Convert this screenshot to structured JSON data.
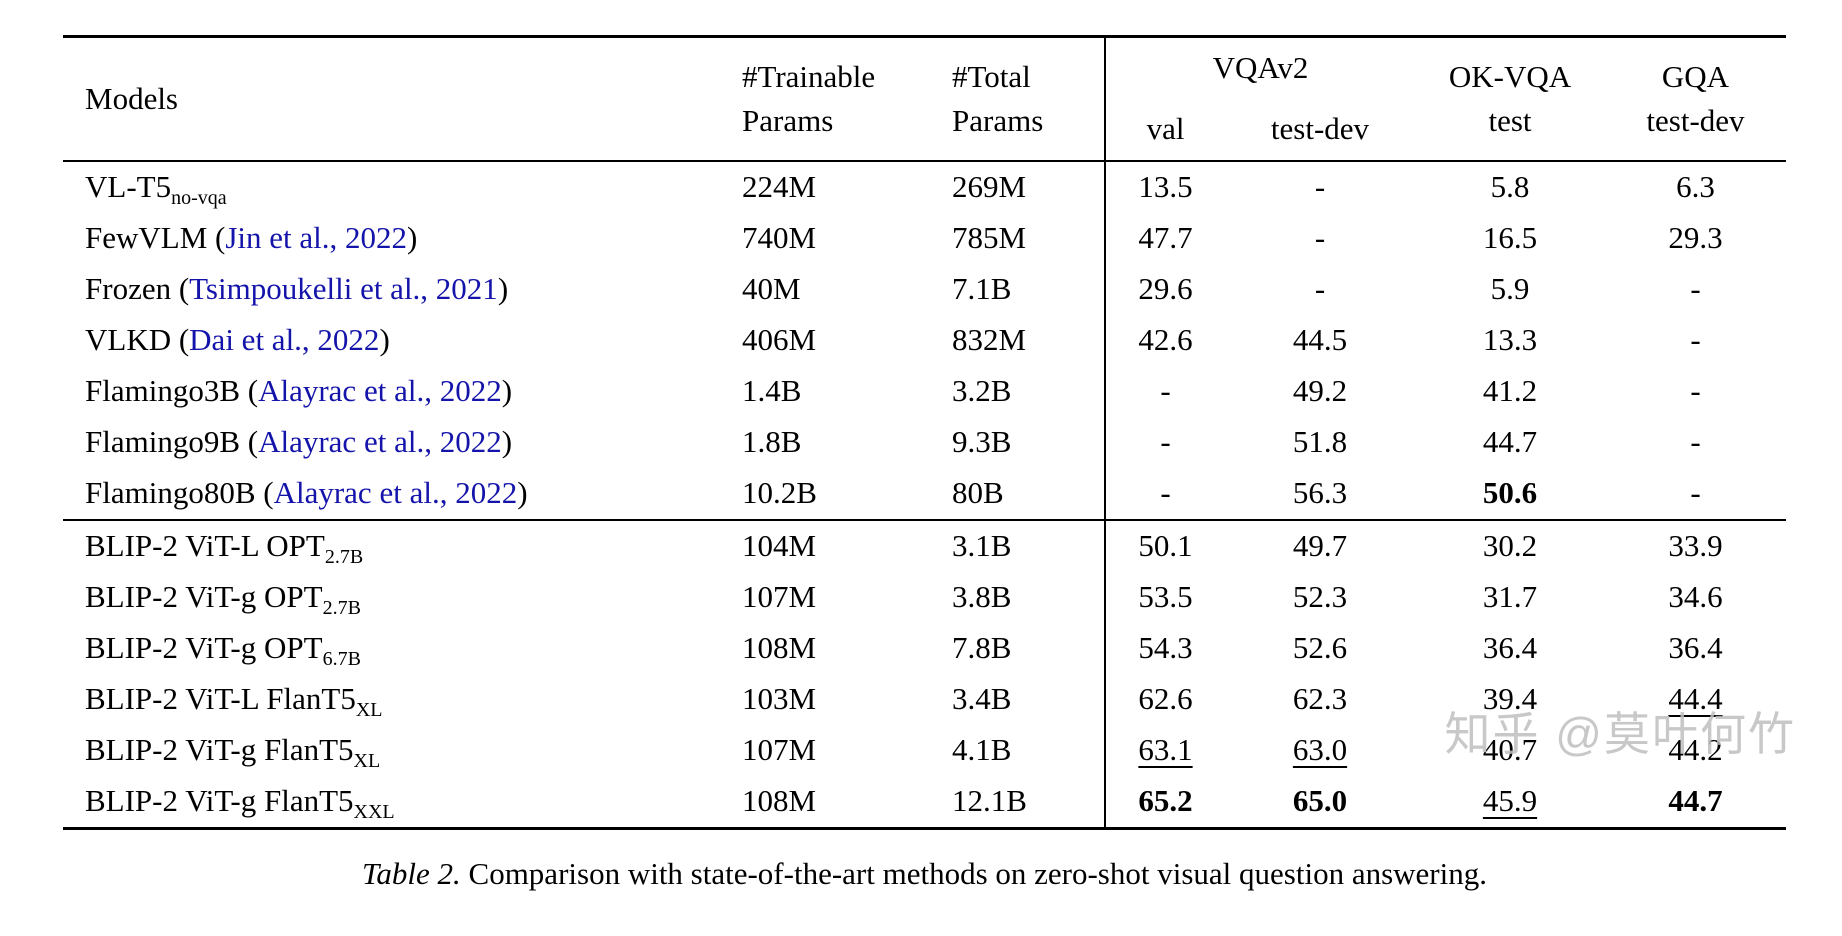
{
  "colors": {
    "text": "#000000",
    "citation": "#1414aa",
    "watermark": "#bfbfbf"
  },
  "table": {
    "headers": {
      "models": "Models",
      "trainable": [
        "#Trainable",
        "Params"
      ],
      "total": [
        "#Total",
        "Params"
      ],
      "vqav2": "VQAv2",
      "val": "val",
      "test_dev": "test-dev",
      "okvqa": [
        "OK-VQA",
        "test"
      ],
      "gqa": [
        "GQA",
        "test-dev"
      ]
    },
    "groups": [
      {
        "name": "baselines",
        "rows": [
          {
            "pre": "VL-T5",
            "sub": "no-vqa",
            "trainable": "224M",
            "total": "269M",
            "metrics": [
              {
                "v": "13.5"
              },
              {
                "v": "-"
              },
              {
                "v": "5.8"
              },
              {
                "v": "6.3"
              }
            ]
          },
          {
            "pre": "FewVLM (",
            "cite": "Jin et al., 2022",
            "post": ")",
            "trainable": "740M",
            "total": "785M",
            "metrics": [
              {
                "v": "47.7"
              },
              {
                "v": "-"
              },
              {
                "v": "16.5"
              },
              {
                "v": "29.3"
              }
            ]
          },
          {
            "pre": "Frozen (",
            "cite": "Tsimpoukelli et al., 2021",
            "post": ")",
            "trainable": "40M",
            "total": "7.1B",
            "metrics": [
              {
                "v": "29.6"
              },
              {
                "v": "-"
              },
              {
                "v": "5.9"
              },
              {
                "v": "-"
              }
            ]
          },
          {
            "pre": "VLKD (",
            "cite": "Dai et al., 2022",
            "post": ")",
            "trainable": "406M",
            "total": "832M",
            "metrics": [
              {
                "v": "42.6"
              },
              {
                "v": "44.5"
              },
              {
                "v": "13.3"
              },
              {
                "v": "-"
              }
            ]
          },
          {
            "pre": "Flamingo3B (",
            "cite": "Alayrac et al., 2022",
            "post": ")",
            "trainable": "1.4B",
            "total": "3.2B",
            "metrics": [
              {
                "v": "-"
              },
              {
                "v": "49.2"
              },
              {
                "v": "41.2"
              },
              {
                "v": "-"
              }
            ]
          },
          {
            "pre": "Flamingo9B (",
            "cite": "Alayrac et al., 2022",
            "post": ")",
            "trainable": "1.8B",
            "total": "9.3B",
            "metrics": [
              {
                "v": "-"
              },
              {
                "v": "51.8"
              },
              {
                "v": "44.7"
              },
              {
                "v": "-"
              }
            ]
          },
          {
            "pre": "Flamingo80B (",
            "cite": "Alayrac et al., 2022",
            "post": ")",
            "trainable": "10.2B",
            "total": "80B",
            "metrics": [
              {
                "v": "-"
              },
              {
                "v": "56.3"
              },
              {
                "v": "50.6",
                "s": "bold"
              },
              {
                "v": "-"
              }
            ]
          }
        ]
      },
      {
        "name": "blip2",
        "rows": [
          {
            "pre": "BLIP-2 ViT-L OPT",
            "sub": "2.7B",
            "trainable": "104M",
            "total": "3.1B",
            "metrics": [
              {
                "v": "50.1"
              },
              {
                "v": "49.7"
              },
              {
                "v": "30.2"
              },
              {
                "v": "33.9"
              }
            ]
          },
          {
            "pre": "BLIP-2 ViT-g OPT",
            "sub": "2.7B",
            "trainable": "107M",
            "total": "3.8B",
            "metrics": [
              {
                "v": "53.5"
              },
              {
                "v": "52.3"
              },
              {
                "v": "31.7"
              },
              {
                "v": "34.6"
              }
            ]
          },
          {
            "pre": "BLIP-2 ViT-g OPT",
            "sub": "6.7B",
            "trainable": "108M",
            "total": "7.8B",
            "metrics": [
              {
                "v": "54.3"
              },
              {
                "v": "52.6"
              },
              {
                "v": "36.4"
              },
              {
                "v": "36.4"
              }
            ]
          },
          {
            "pre": "BLIP-2 ViT-L FlanT5",
            "sub": "XL",
            "trainable": "103M",
            "total": "3.4B",
            "metrics": [
              {
                "v": "62.6"
              },
              {
                "v": "62.3"
              },
              {
                "v": "39.4"
              },
              {
                "v": "44.4",
                "s": "underline"
              }
            ]
          },
          {
            "pre": "BLIP-2 ViT-g FlanT5",
            "sub": "XL",
            "trainable": "107M",
            "total": "4.1B",
            "metrics": [
              {
                "v": "63.1",
                "s": "underline"
              },
              {
                "v": "63.0",
                "s": "underline"
              },
              {
                "v": "40.7"
              },
              {
                "v": "44.2"
              }
            ]
          },
          {
            "pre": "BLIP-2 ViT-g FlanT5",
            "sub": "XXL",
            "trainable": "108M",
            "total": "12.1B",
            "metrics": [
              {
                "v": "65.2",
                "s": "bold"
              },
              {
                "v": "65.0",
                "s": "bold"
              },
              {
                "v": "45.9",
                "s": "underline"
              },
              {
                "v": "44.7",
                "s": "bold"
              }
            ]
          }
        ]
      }
    ]
  },
  "caption": {
    "label": "Table 2.",
    "text": "Comparison with state-of-the-art methods on zero-shot visual question answering."
  },
  "watermark": {
    "text": "知乎 @莫叶何竹"
  }
}
